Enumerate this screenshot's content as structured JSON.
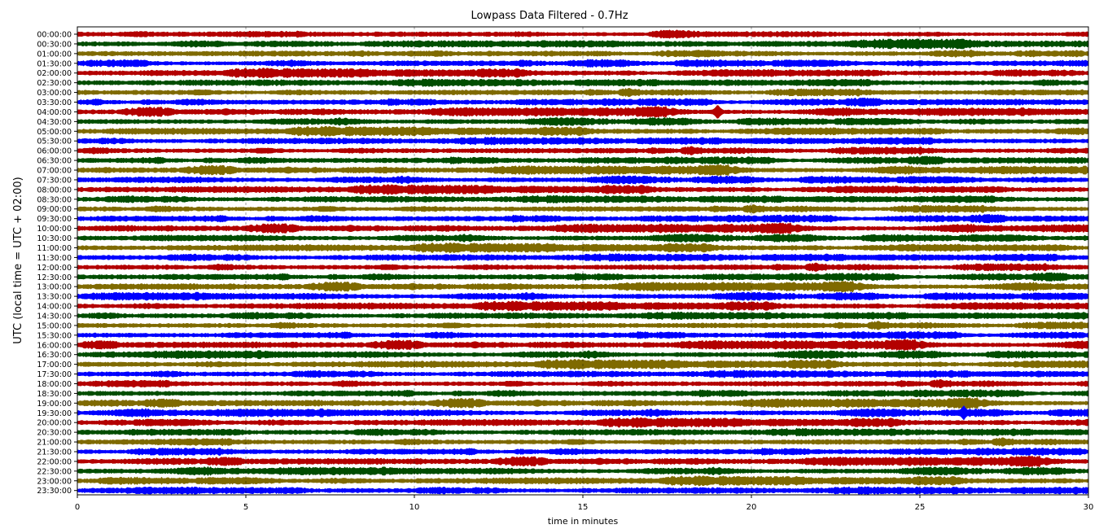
{
  "chart_data": {
    "type": "line",
    "title": "Lowpass Data Filtered - 0.7Hz",
    "xlabel": "time in minutes",
    "ylabel": "UTC (local time = UTC + 02:00)",
    "xlim": [
      0,
      30
    ],
    "x_ticks": [
      0,
      5,
      10,
      15,
      20,
      25,
      30
    ],
    "x_tick_labels": [
      "0",
      "5",
      "10",
      "15",
      "20",
      "25",
      "30"
    ],
    "grid": true,
    "row_labels": [
      "00:00:00",
      "00:30:00",
      "01:00:00",
      "01:30:00",
      "02:00:00",
      "02:30:00",
      "03:00:00",
      "03:30:00",
      "04:00:00",
      "04:30:00",
      "05:00:00",
      "05:30:00",
      "06:00:00",
      "06:30:00",
      "07:00:00",
      "07:30:00",
      "08:00:00",
      "08:30:00",
      "09:00:00",
      "09:30:00",
      "10:00:00",
      "10:30:00",
      "11:00:00",
      "11:30:00",
      "12:00:00",
      "12:30:00",
      "13:00:00",
      "13:30:00",
      "14:00:00",
      "14:30:00",
      "15:00:00",
      "15:30:00",
      "16:00:00",
      "16:30:00",
      "17:00:00",
      "17:30:00",
      "18:00:00",
      "18:30:00",
      "19:00:00",
      "19:30:00",
      "20:00:00",
      "20:30:00",
      "21:00:00",
      "21:30:00",
      "22:00:00",
      "22:30:00",
      "23:00:00",
      "23:30:00"
    ],
    "trace_colors": [
      "#b30000",
      "#004d00",
      "#7f6a00",
      "#0000ff"
    ],
    "notable_events": [
      {
        "row": "04:00:00",
        "x_minutes": 19.0
      },
      {
        "row": "19:30:00",
        "x_minutes": 26.3
      }
    ]
  }
}
